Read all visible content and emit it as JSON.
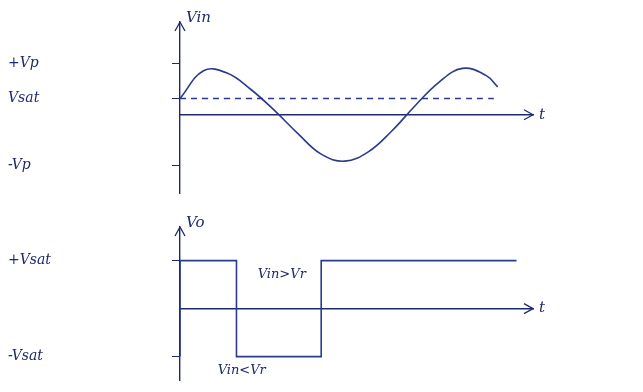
{
  "chart_data": [
    {
      "type": "line",
      "ylabel": "Vin",
      "xlabel": "t",
      "x": [
        0,
        1,
        2,
        3,
        4,
        5,
        6,
        7,
        8,
        9,
        10,
        11,
        12,
        13,
        13.5
      ],
      "series": [
        {
          "color": "#2b3a8c",
          "values": [
            0.35,
            0.95,
            0.9,
            0.55,
            0.1,
            -0.4,
            -0.85,
            -1.0,
            -0.8,
            -0.35,
            0.2,
            0.7,
            1.0,
            0.85,
            0.6
          ]
        },
        {
          "color": "#2b3a8c",
          "line_style": "dashed",
          "values": [
            0.35,
            0.35,
            0.35,
            0.35,
            0.35,
            0.35,
            0.35,
            0.35,
            0.35,
            0.35,
            0.35,
            0.35,
            0.35,
            0.35,
            0.35
          ]
        }
      ],
      "xlim": [
        0,
        15
      ],
      "ylim": [
        -1.7,
        2.0
      ],
      "yticks": [
        {
          "value": 1.1,
          "label": "+Vp"
        },
        {
          "value": 0.35,
          "label": "Vsat"
        },
        {
          "value": -1.1,
          "label": "-Vp"
        }
      ],
      "tick_labels": "y",
      "grid": false
    },
    {
      "type": "line",
      "ylabel": "Vo",
      "xlabel": "t",
      "x": [
        0,
        2.4,
        6,
        10.2,
        14.3
      ],
      "series": [
        {
          "color": "#2b3a8c",
          "line_style": "stepped",
          "values": [
            -1,
            1,
            -1,
            1,
            1
          ]
        }
      ],
      "xlim": [
        0,
        15
      ],
      "ylim": [
        -1.5,
        1.7
      ],
      "yticks": [
        {
          "value": 1,
          "label": "+Vsat"
        },
        {
          "value": -1,
          "label": "-Vsat"
        }
      ],
      "tick_labels": "y",
      "grid": false,
      "annotations": [
        {
          "text": "Vin>Vr",
          "x": 3.3,
          "y": 0.7
        },
        {
          "text": "Vin<Vr",
          "x": 1.6,
          "y": -1.3
        }
      ]
    }
  ]
}
